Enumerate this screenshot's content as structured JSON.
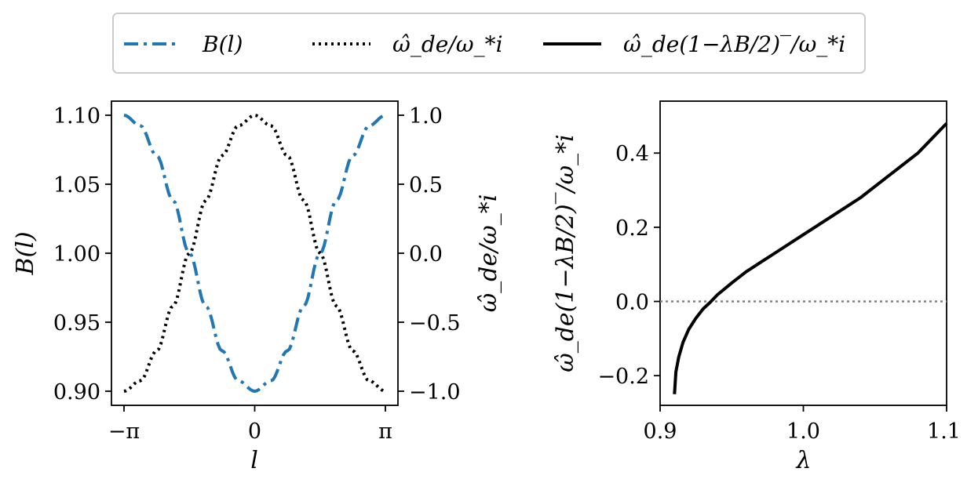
{
  "colors": {
    "blue": "#1f77b4",
    "black": "#000000",
    "gray": "#808080",
    "legend_border": "#cccccc"
  },
  "legend": {
    "placement": "top-center",
    "items": [
      {
        "label": "B(l)",
        "style": "dashdot",
        "color": "#1f77b4"
      },
      {
        "label": "ω̂_de/ω_*i",
        "style": "dotted",
        "color": "#000000"
      },
      {
        "label": "ω̂_de(1−λB/2)‾/ω_*i",
        "style": "solid",
        "color": "#000000"
      }
    ]
  },
  "chart_data": [
    {
      "type": "line",
      "xlabel": "l",
      "ylabel": "B(l)",
      "ylabel_right": "ω̂_de/ω_*i",
      "x_range": [
        -3.14159,
        3.14159
      ],
      "ylim": [
        0.9,
        1.1
      ],
      "ylim_right": [
        -1.0,
        1.0
      ],
      "x_ticks": [
        {
          "value": -3.14159,
          "label": "−π"
        },
        {
          "value": 0,
          "label": "0"
        },
        {
          "value": 3.14159,
          "label": "π"
        }
      ],
      "y_ticks": [
        "0.90",
        "0.95",
        "1.00",
        "1.05",
        "1.10"
      ],
      "y_ticks_right": [
        "−1.0",
        "−0.5",
        "0.0",
        "0.5",
        "1.0"
      ],
      "series": [
        {
          "name": "B(l)",
          "axis": "left",
          "style": "dashdot",
          "color": "#1f77b4",
          "x": [
            -3.1416,
            -2.7489,
            -2.3562,
            -1.9635,
            -1.5708,
            -1.1781,
            -0.7854,
            -0.3927,
            0,
            0.3927,
            0.7854,
            1.1781,
            1.5708,
            1.9635,
            2.3562,
            2.7489,
            3.1416
          ],
          "y": [
            1.1,
            1.0924,
            1.0707,
            1.0383,
            1.0,
            0.9617,
            0.9293,
            0.9076,
            0.9,
            0.9076,
            0.9293,
            0.9617,
            1.0,
            1.0383,
            1.0707,
            1.0924,
            1.1
          ]
        },
        {
          "name": "ω̂_de/ω_*i",
          "axis": "right",
          "style": "dotted",
          "color": "#000000",
          "x": [
            -3.1416,
            -2.7489,
            -2.3562,
            -1.9635,
            -1.5708,
            -1.1781,
            -0.7854,
            -0.3927,
            0,
            0.3927,
            0.7854,
            1.1781,
            1.5708,
            1.9635,
            2.3562,
            2.7489,
            3.1416
          ],
          "y": [
            -1.0,
            -0.9239,
            -0.7071,
            -0.3827,
            0.0,
            0.3827,
            0.7071,
            0.9239,
            1.0,
            0.9239,
            0.7071,
            0.3827,
            0.0,
            -0.3827,
            -0.7071,
            -0.9239,
            -1.0
          ]
        }
      ]
    },
    {
      "type": "line",
      "xlabel": "λ",
      "ylabel": "ω̂_de(1−λB/2)‾/ω_*i",
      "xlim": [
        0.9,
        1.1
      ],
      "ylim": [
        -0.28,
        0.54
      ],
      "x_ticks": [
        "0.9",
        "1.0",
        "1.1"
      ],
      "y_ticks": [
        {
          "value": -0.2,
          "label": "−0.2"
        },
        {
          "value": 0.0,
          "label": "0.0"
        },
        {
          "value": 0.2,
          "label": "0.2"
        },
        {
          "value": 0.4,
          "label": "0.4"
        }
      ],
      "hline": {
        "y": 0.0,
        "style": "dotted",
        "color": "#808080"
      },
      "series": [
        {
          "name": "ω̂_de(1−λB/2)‾/ω_*i",
          "style": "solid",
          "color": "#000000",
          "x": [
            0.91,
            0.911,
            0.913,
            0.916,
            0.92,
            0.925,
            0.93,
            0.935,
            0.94,
            0.95,
            0.96,
            0.97,
            0.98,
            1.0,
            1.02,
            1.04,
            1.06,
            1.08,
            1.1
          ],
          "y": [
            -0.25,
            -0.19,
            -0.15,
            -0.11,
            -0.075,
            -0.045,
            -0.02,
            -0.002,
            0.018,
            0.05,
            0.08,
            0.105,
            0.13,
            0.18,
            0.23,
            0.28,
            0.34,
            0.4,
            0.48
          ]
        }
      ]
    }
  ]
}
